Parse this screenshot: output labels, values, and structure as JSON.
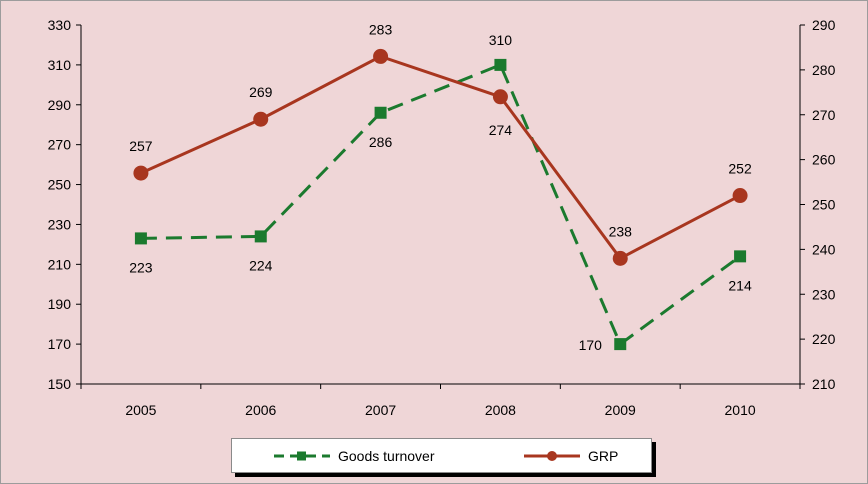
{
  "chart_data": {
    "type": "line",
    "categories": [
      "2005",
      "2006",
      "2007",
      "2008",
      "2009",
      "2010"
    ],
    "series": [
      {
        "name": "Goods turnover",
        "axis": "left",
        "values": [
          223,
          224,
          286,
          310,
          170,
          214
        ],
        "color": "#1b7a2e",
        "style": "dashed",
        "marker": "square"
      },
      {
        "name": "GRP",
        "axis": "right",
        "values": [
          257,
          269,
          283,
          274,
          238,
          252
        ],
        "color": "#a8361f",
        "style": "solid",
        "marker": "circle"
      }
    ],
    "y_left": {
      "min": 150,
      "max": 330,
      "step": 20,
      "ticks": [
        "150",
        "170",
        "190",
        "210",
        "230",
        "250",
        "270",
        "290",
        "310",
        "330"
      ]
    },
    "y_right": {
      "min": 210,
      "max": 290,
      "step": 10,
      "ticks": [
        "210",
        "220",
        "230",
        "240",
        "250",
        "260",
        "270",
        "280",
        "290"
      ]
    },
    "grid": false,
    "legend_position": "bottom",
    "background": "#efd6d7"
  }
}
